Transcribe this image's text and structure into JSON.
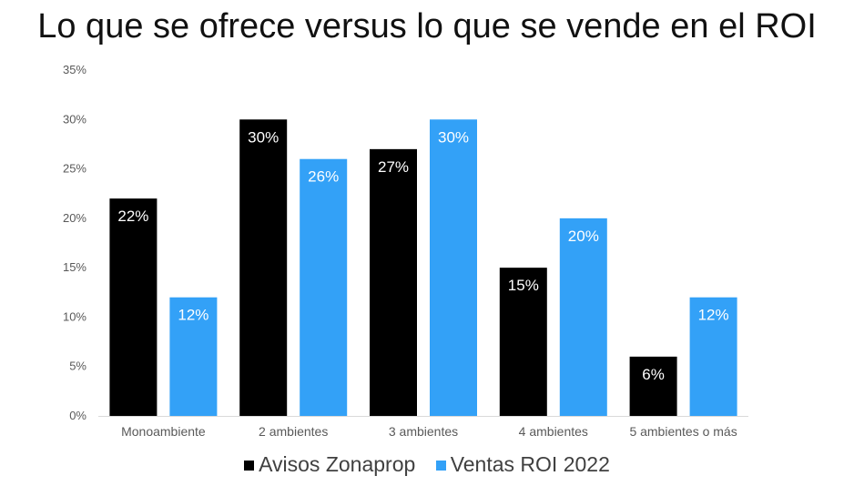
{
  "title": "Lo que se ofrece versus lo que se vende en el ROI",
  "chart_data": {
    "type": "bar",
    "title": "Lo que se ofrece versus lo que se vende en el ROI",
    "categories": [
      "Monoambiente",
      "2 ambientes",
      "3 ambientes",
      "4 ambientes",
      "5 ambientes o más"
    ],
    "series": [
      {
        "name": "Avisos Zonaprop",
        "color": "#000000",
        "values": [
          22,
          30,
          27,
          15,
          6
        ],
        "labels": [
          "22%",
          "30%",
          "27%",
          "15%",
          "6%"
        ]
      },
      {
        "name": "Ventas ROI 2022",
        "color": "#33a1f7",
        "values": [
          12,
          26,
          30,
          20,
          12
        ],
        "labels": [
          "12%",
          "26%",
          "30%",
          "20%",
          "12%"
        ]
      }
    ],
    "yticks": [
      "0%",
      "5%",
      "10%",
      "15%",
      "20%",
      "25%",
      "30%",
      "35%"
    ],
    "ylim": [
      0,
      35
    ],
    "xlabel": "",
    "ylabel": "",
    "legend": "bottom"
  }
}
